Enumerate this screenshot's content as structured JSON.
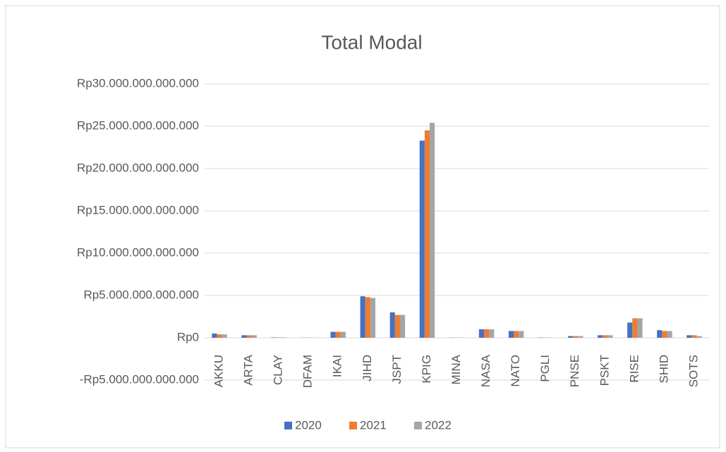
{
  "chart_data": {
    "type": "bar",
    "title": "Total Modal",
    "categories": [
      "AKKU",
      "ARTA",
      "CLAY",
      "DFAM",
      "IKAI",
      "JIHD",
      "JSPT",
      "KPIG",
      "MINA",
      "NASA",
      "NATO",
      "PGLI",
      "PNSE",
      "PSKT",
      "RISE",
      "SHID",
      "SOTS"
    ],
    "series": [
      {
        "name": "2020",
        "color": "#4472c4",
        "values": [
          500000000000,
          300000000000,
          50000000000,
          20000000000,
          700000000000,
          4900000000000,
          3000000000000,
          23300000000000,
          20000000000,
          1000000000000,
          800000000000,
          30000000000,
          200000000000,
          300000000000,
          1800000000000,
          900000000000,
          300000000000
        ]
      },
      {
        "name": "2021",
        "color": "#ed7d31",
        "values": [
          400000000000,
          300000000000,
          50000000000,
          20000000000,
          700000000000,
          4800000000000,
          2700000000000,
          24500000000000,
          20000000000,
          1000000000000,
          800000000000,
          30000000000,
          200000000000,
          300000000000,
          2300000000000,
          800000000000,
          300000000000
        ]
      },
      {
        "name": "2022",
        "color": "#a5a5a5",
        "values": [
          400000000000,
          300000000000,
          50000000000,
          20000000000,
          700000000000,
          4700000000000,
          2700000000000,
          25400000000000,
          20000000000,
          1000000000000,
          800000000000,
          30000000000,
          200000000000,
          300000000000,
          2300000000000,
          800000000000,
          200000000000
        ]
      }
    ],
    "ylim": [
      -5000000000000,
      30000000000000
    ],
    "yticks": [
      {
        "value": -5000000000000,
        "label": "-Rp5.000.000.000.000"
      },
      {
        "value": 0,
        "label": "Rp0"
      },
      {
        "value": 5000000000000,
        "label": "Rp5.000.000.000.000"
      },
      {
        "value": 10000000000000,
        "label": "Rp10.000.000.000.000"
      },
      {
        "value": 15000000000000,
        "label": "Rp15.000.000.000.000"
      },
      {
        "value": 20000000000000,
        "label": "Rp20.000.000.000.000"
      },
      {
        "value": 25000000000000,
        "label": "Rp25.000.000.000.000"
      },
      {
        "value": 30000000000000,
        "label": "Rp30.000.000.000.000"
      }
    ],
    "grid": true,
    "legend": "bottom"
  }
}
